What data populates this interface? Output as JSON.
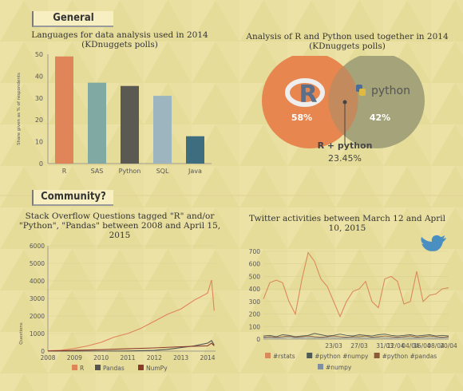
{
  "sections": {
    "general": "General",
    "community": "Community?"
  },
  "colors": {
    "r": "#e0845a",
    "sas": "#7fa9a2",
    "python": "#5a5a52",
    "sql": "#9db5be",
    "java": "#3e6d80",
    "venn_r": "#e7864f",
    "venn_py": "#a5a37a",
    "pandas": "#555555",
    "numpy": "#8b3b2a",
    "rstats": "#d98a5a",
    "python_numpy": "#4e5a56",
    "python_pandas": "#8a5a3a",
    "numpy_tw": "#7f8fa0"
  },
  "icons": [
    "r-logo-icon",
    "python-logo-icon",
    "twitter-bird-icon"
  ],
  "chart_data": [
    {
      "type": "bar",
      "title": "Languages for data analysis used in 2014 (KDnuggets polls)",
      "ylabel": "Share given as % of respondents",
      "categories": [
        "R",
        "SAS",
        "Python",
        "SQL",
        "Java"
      ],
      "values": [
        49,
        37,
        35.5,
        31,
        12.5
      ],
      "ylim": [
        0,
        50
      ],
      "yticks": [
        0,
        10,
        20,
        30,
        40,
        50
      ]
    },
    {
      "type": "venn",
      "title": "Analysis of R and Python used together in 2014 (KDnuggets polls)",
      "sets": [
        {
          "name": "R",
          "label": "R",
          "value": "58%"
        },
        {
          "name": "Python",
          "label": "python",
          "value": "42%"
        }
      ],
      "overlap": {
        "label": "R + python",
        "value": "23.45%"
      }
    },
    {
      "type": "line",
      "title": "Stack Overflow Questions tagged \"R\" and/or \"Python\", \"Pandas\" between 2008 and April 15, 2015",
      "ylabel": "Questions",
      "ylim": [
        0,
        6000
      ],
      "yticks": [
        0,
        1000,
        2000,
        3000,
        4000,
        5000,
        6000
      ],
      "xticks": [
        "2008",
        "2009",
        "2010",
        "2011",
        "2012",
        "2013",
        "2014"
      ],
      "xlim": [
        2008,
        2014.3
      ],
      "series": [
        {
          "name": "R",
          "x": [
            2008.0,
            2008.5,
            2009.0,
            2009.5,
            2010.0,
            2010.5,
            2011.0,
            2011.5,
            2012.0,
            2012.5,
            2013.0,
            2013.5,
            2014.0,
            2014.15,
            2014.25
          ],
          "values": [
            20,
            50,
            150,
            300,
            500,
            800,
            1000,
            1300,
            1700,
            2100,
            2400,
            2900,
            3300,
            4050,
            2300
          ]
        },
        {
          "name": "Pandas",
          "x": [
            2008.0,
            2011.0,
            2012.0,
            2012.5,
            2013.0,
            2013.5,
            2014.0,
            2014.15,
            2014.25
          ],
          "values": [
            0,
            10,
            40,
            100,
            200,
            300,
            450,
            600,
            350
          ]
        },
        {
          "name": "NumPy",
          "x": [
            2008.0,
            2009.0,
            2010.0,
            2011.0,
            2012.0,
            2013.0,
            2014.0,
            2014.15,
            2014.25
          ],
          "values": [
            10,
            40,
            80,
            130,
            180,
            250,
            300,
            450,
            300
          ]
        }
      ]
    },
    {
      "type": "line",
      "title": "Twitter activities between March 12 and April 10, 2015",
      "ylim": [
        0,
        700
      ],
      "yticks": [
        0,
        100,
        200,
        300,
        400,
        500,
        600,
        700
      ],
      "xticks": [
        "23/03",
        "27/03",
        "31/03",
        "04/04",
        "08/04",
        "12/04",
        "16/04",
        "20/04"
      ],
      "x": [
        "12/03",
        "13/03",
        "14/03",
        "15/03",
        "16/03",
        "17/03",
        "18/03",
        "19/03",
        "20/03",
        "21/03",
        "22/03",
        "23/03",
        "24/03",
        "25/03",
        "26/03",
        "27/03",
        "28/03",
        "29/03",
        "30/03",
        "31/03",
        "01/04",
        "02/04",
        "03/04",
        "04/04",
        "05/04",
        "06/04",
        "07/04",
        "08/04",
        "09/04",
        "10/04"
      ],
      "series": [
        {
          "name": "#rstats",
          "values": [
            320,
            450,
            470,
            450,
            300,
            200,
            470,
            690,
            620,
            480,
            420,
            300,
            180,
            300,
            380,
            400,
            460,
            300,
            250,
            480,
            500,
            460,
            280,
            300,
            540,
            300,
            350,
            360,
            400,
            410
          ]
        },
        {
          "name": "#python #numpy",
          "values": [
            25,
            30,
            20,
            35,
            30,
            20,
            25,
            30,
            45,
            35,
            25,
            30,
            40,
            30,
            25,
            35,
            30,
            25,
            35,
            40,
            30,
            25,
            30,
            35,
            25,
            30,
            35,
            25,
            30,
            25
          ]
        },
        {
          "name": "#python #pandas",
          "values": [
            15,
            20,
            15,
            20,
            25,
            15,
            20,
            25,
            20,
            15,
            20,
            25,
            20,
            15,
            20,
            20,
            25,
            15,
            20,
            25,
            20,
            15,
            20,
            25,
            15,
            20,
            25,
            20,
            15,
            20
          ]
        },
        {
          "name": "#numpy",
          "values": [
            10,
            12,
            8,
            10,
            15,
            8,
            10,
            12,
            10,
            8,
            12,
            10,
            8,
            10,
            12,
            10,
            8,
            10,
            12,
            10,
            8,
            10,
            12,
            10,
            8,
            12,
            10,
            8,
            10,
            12
          ]
        }
      ]
    }
  ]
}
